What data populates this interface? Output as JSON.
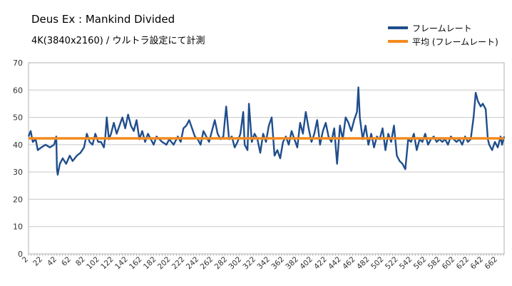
{
  "chart_data": {
    "type": "line",
    "title": "Deus Ex : Mankind Divided",
    "subtitle": "4K(3840x2160) / ウルトラ設定にて計測",
    "xlabel": "",
    "ylabel": "",
    "ylim": [
      0,
      70
    ],
    "yticks": [
      0,
      10,
      20,
      30,
      40,
      50,
      60,
      70
    ],
    "x_start": 2,
    "x_end": 671,
    "x_label_every": 20,
    "grid": true,
    "legend_position": "top-right",
    "series": [
      {
        "name": "フレームレート",
        "color": "#1f4e8c",
        "keypoints": [
          [
            2,
            43
          ],
          [
            5,
            45
          ],
          [
            8,
            41
          ],
          [
            12,
            42
          ],
          [
            15,
            38
          ],
          [
            20,
            39
          ],
          [
            26,
            40
          ],
          [
            32,
            39
          ],
          [
            38,
            40
          ],
          [
            41,
            43
          ],
          [
            42,
            31
          ],
          [
            43,
            29
          ],
          [
            46,
            33
          ],
          [
            50,
            35
          ],
          [
            55,
            33
          ],
          [
            60,
            36
          ],
          [
            64,
            34
          ],
          [
            70,
            36
          ],
          [
            75,
            37
          ],
          [
            80,
            39
          ],
          [
            84,
            44
          ],
          [
            88,
            41
          ],
          [
            92,
            40
          ],
          [
            96,
            44
          ],
          [
            100,
            41
          ],
          [
            104,
            41
          ],
          [
            108,
            39
          ],
          [
            110,
            43
          ],
          [
            112,
            50
          ],
          [
            115,
            42
          ],
          [
            118,
            44
          ],
          [
            122,
            48
          ],
          [
            126,
            44
          ],
          [
            130,
            47
          ],
          [
            134,
            50
          ],
          [
            138,
            46
          ],
          [
            142,
            51
          ],
          [
            146,
            47
          ],
          [
            150,
            45
          ],
          [
            154,
            49
          ],
          [
            158,
            42
          ],
          [
            162,
            45
          ],
          [
            166,
            41
          ],
          [
            170,
            44
          ],
          [
            174,
            42
          ],
          [
            178,
            40
          ],
          [
            182,
            43
          ],
          [
            186,
            42
          ],
          [
            190,
            41
          ],
          [
            196,
            40
          ],
          [
            200,
            42
          ],
          [
            206,
            40
          ],
          [
            212,
            43
          ],
          [
            216,
            41
          ],
          [
            220,
            46
          ],
          [
            224,
            47
          ],
          [
            228,
            49
          ],
          [
            232,
            46
          ],
          [
            236,
            43
          ],
          [
            240,
            42
          ],
          [
            244,
            40
          ],
          [
            248,
            45
          ],
          [
            252,
            43
          ],
          [
            256,
            41
          ],
          [
            260,
            45
          ],
          [
            264,
            49
          ],
          [
            268,
            44
          ],
          [
            272,
            42
          ],
          [
            276,
            43
          ],
          [
            280,
            54
          ],
          [
            284,
            42
          ],
          [
            288,
            43
          ],
          [
            292,
            39
          ],
          [
            296,
            41
          ],
          [
            300,
            44
          ],
          [
            304,
            52
          ],
          [
            306,
            40
          ],
          [
            310,
            38
          ],
          [
            312,
            55
          ],
          [
            316,
            41
          ],
          [
            320,
            44
          ],
          [
            324,
            42
          ],
          [
            328,
            37
          ],
          [
            332,
            44
          ],
          [
            336,
            41
          ],
          [
            340,
            47
          ],
          [
            344,
            50
          ],
          [
            348,
            36
          ],
          [
            352,
            38
          ],
          [
            356,
            35
          ],
          [
            360,
            41
          ],
          [
            364,
            43
          ],
          [
            368,
            40
          ],
          [
            372,
            45
          ],
          [
            376,
            42
          ],
          [
            380,
            39
          ],
          [
            384,
            48
          ],
          [
            388,
            44
          ],
          [
            392,
            52
          ],
          [
            396,
            46
          ],
          [
            400,
            41
          ],
          [
            404,
            44
          ],
          [
            408,
            49
          ],
          [
            412,
            40
          ],
          [
            416,
            45
          ],
          [
            420,
            48
          ],
          [
            424,
            43
          ],
          [
            428,
            41
          ],
          [
            432,
            46
          ],
          [
            436,
            33
          ],
          [
            440,
            47
          ],
          [
            444,
            42
          ],
          [
            448,
            50
          ],
          [
            452,
            48
          ],
          [
            456,
            45
          ],
          [
            460,
            49
          ],
          [
            464,
            52
          ],
          [
            466,
            61
          ],
          [
            468,
            50
          ],
          [
            472,
            42
          ],
          [
            476,
            47
          ],
          [
            480,
            40
          ],
          [
            484,
            44
          ],
          [
            488,
            39
          ],
          [
            492,
            43
          ],
          [
            496,
            42
          ],
          [
            500,
            46
          ],
          [
            504,
            38
          ],
          [
            508,
            44
          ],
          [
            512,
            41
          ],
          [
            516,
            47
          ],
          [
            520,
            36
          ],
          [
            524,
            34
          ],
          [
            528,
            33
          ],
          [
            532,
            31
          ],
          [
            536,
            42
          ],
          [
            540,
            41
          ],
          [
            544,
            44
          ],
          [
            548,
            38
          ],
          [
            552,
            42
          ],
          [
            556,
            41
          ],
          [
            560,
            44
          ],
          [
            564,
            40
          ],
          [
            568,
            42
          ],
          [
            572,
            43
          ],
          [
            576,
            41
          ],
          [
            580,
            42
          ],
          [
            584,
            41
          ],
          [
            588,
            42
          ],
          [
            592,
            40
          ],
          [
            596,
            43
          ],
          [
            600,
            42
          ],
          [
            604,
            41
          ],
          [
            608,
            42
          ],
          [
            612,
            40
          ],
          [
            616,
            43
          ],
          [
            620,
            41
          ],
          [
            624,
            42
          ],
          [
            628,
            50
          ],
          [
            631,
            59
          ],
          [
            634,
            56
          ],
          [
            638,
            54
          ],
          [
            641,
            55
          ],
          [
            645,
            53
          ],
          [
            648,
            42
          ],
          [
            650,
            40
          ],
          [
            654,
            38
          ],
          [
            658,
            41
          ],
          [
            662,
            39
          ],
          [
            666,
            43
          ],
          [
            668,
            40
          ],
          [
            671,
            43
          ]
        ]
      },
      {
        "name": "平均 (フレームレート)",
        "color": "#f28a1e",
        "average": 42.3
      }
    ]
  }
}
